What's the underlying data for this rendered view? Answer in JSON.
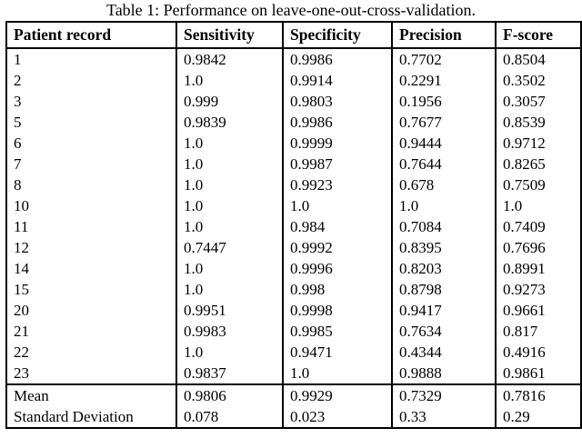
{
  "title": "Table 1: Performance on leave-one-out-cross-validation.",
  "table": {
    "headers": [
      "Patient record",
      "Sensitivity",
      "Specificity",
      "Precision",
      "F-score"
    ],
    "rows": [
      [
        "1",
        "0.9842",
        "0.9986",
        "0.7702",
        "0.8504"
      ],
      [
        "2",
        "1.0",
        "0.9914",
        "0.2291",
        "0.3502"
      ],
      [
        "3",
        "0.999",
        "0.9803",
        "0.1956",
        "0.3057"
      ],
      [
        "5",
        "0.9839",
        "0.9986",
        "0.7677",
        "0.8539"
      ],
      [
        "6",
        "1.0",
        "0.9999",
        "0.9444",
        "0.9712"
      ],
      [
        "7",
        "1.0",
        "0.9987",
        "0.7644",
        "0.8265"
      ],
      [
        "8",
        "1.0",
        "0.9923",
        "0.678",
        "0.7509"
      ],
      [
        "10",
        "1.0",
        "1.0",
        "1.0",
        "1.0"
      ],
      [
        "11",
        "1.0",
        "0.984",
        "0.7084",
        "0.7409"
      ],
      [
        "12",
        "0.7447",
        "0.9992",
        "0.8395",
        "0.7696"
      ],
      [
        "14",
        "1.0",
        "0.9996",
        "0.8203",
        "0.8991"
      ],
      [
        "15",
        "1.0",
        "0.998",
        "0.8798",
        "0.9273"
      ],
      [
        "20",
        "0.9951",
        "0.9998",
        "0.9417",
        "0.9661"
      ],
      [
        "21",
        "0.9983",
        "0.9985",
        "0.7634",
        "0.817"
      ],
      [
        "22",
        "1.0",
        "0.9471",
        "0.4344",
        "0.4916"
      ],
      [
        "23",
        "0.9837",
        "1.0",
        "0.9888",
        "0.9861"
      ]
    ],
    "summary_rows": [
      [
        "Mean",
        "0.9806",
        "0.9929",
        "0.7329",
        "0.7816"
      ],
      [
        "Standard Deviation",
        "0.078",
        "0.023",
        "0.33",
        "0.29"
      ]
    ]
  },
  "colors": {
    "text": "#000000",
    "background": "#ffffff",
    "border": "#000000"
  }
}
